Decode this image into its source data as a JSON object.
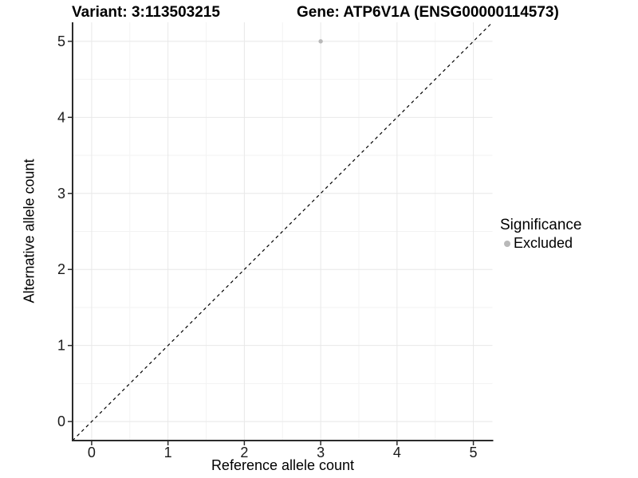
{
  "chart_data": {
    "type": "scatter",
    "title_left": "Variant: 3:113503215",
    "title_right": "Gene: ATP6V1A (ENSG00000114573)",
    "xlabel": "Reference allele count",
    "ylabel": "Alternative allele count",
    "xlim": [
      -0.25,
      5.25
    ],
    "ylim": [
      -0.25,
      5.25
    ],
    "x_ticks": [
      0,
      1,
      2,
      3,
      4,
      5
    ],
    "y_ticks": [
      0,
      1,
      2,
      3,
      4,
      5
    ],
    "x_minor_ticks": [
      0.5,
      1.5,
      2.5,
      3.5,
      4.5
    ],
    "y_minor_ticks": [
      0.5,
      1.5,
      2.5,
      3.5,
      4.5
    ],
    "grid": true,
    "legend_position": "right",
    "legend_title": "Significance",
    "series": [
      {
        "name": "Excluded",
        "color": "#b9b9b9",
        "points": [
          [
            3,
            5
          ]
        ]
      }
    ],
    "reference_line": {
      "type": "identity",
      "style": "dashed",
      "color": "#000000",
      "from": [
        -0.25,
        -0.25
      ],
      "to": [
        5.25,
        5.25
      ]
    }
  },
  "colors": {
    "background": "#ffffff",
    "grid_major": "#e8e8e8",
    "grid_minor": "#f3f3f3",
    "axis_line": "#2b2b2b",
    "tick_text": "#1a1a1a",
    "point": "#b9b9b9"
  }
}
